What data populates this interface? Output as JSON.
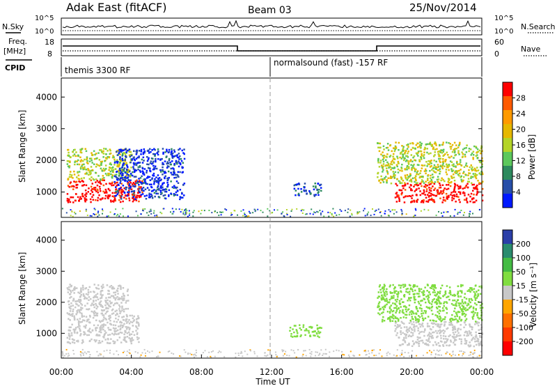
{
  "header": {
    "station": "Adak East (fitACF)",
    "beam": "Beam 03",
    "date": "25/Nov/2014"
  },
  "noise_panel": {
    "left_label": "N.Sky",
    "right_label": "N.Search",
    "left_ticks": [
      "10^5",
      "10^0"
    ],
    "right_ticks": [
      "10^5",
      "10^0"
    ]
  },
  "freq_panel": {
    "left_label_line1": "Freq.",
    "left_label_line2": "[MHz]",
    "left_ticks": [
      "18",
      "8"
    ],
    "right_label": "Nave",
    "right_ticks": [
      "60",
      "0"
    ]
  },
  "cpid_panel": {
    "label": "CPID",
    "segments": [
      {
        "text": "themis 3300 RF",
        "start_hour": 0
      },
      {
        "text": "normalsound (fast) -157 RF",
        "start_hour": 12
      }
    ]
  },
  "chart_data": [
    {
      "type": "heatmap",
      "name": "power",
      "ylabel": "Slant Range [km]",
      "y_ticks": [
        "4000",
        "3000",
        "2000",
        "1000"
      ],
      "ylim": [
        200,
        4600
      ],
      "xlim": [
        0,
        24
      ],
      "colorbar_label": "Power [dB]",
      "colorbar_ticks": [
        "28",
        "24",
        "20",
        "16",
        "12",
        "8",
        "4"
      ],
      "colorbar_colors": [
        "#ff0000",
        "#ff5a00",
        "#ff9a00",
        "#e6b800",
        "#b4d428",
        "#5cc85c",
        "#2d8a5e",
        "#284fa8",
        "#0019ff"
      ],
      "echo_regions": [
        {
          "t0": 0.3,
          "t1": 4.6,
          "r0": 700,
          "r1": 1400,
          "value": 28
        },
        {
          "t0": 0.3,
          "t1": 4.0,
          "r0": 1400,
          "r1": 2400,
          "value": 16
        },
        {
          "t0": 3.0,
          "t1": 7.0,
          "r0": 800,
          "r1": 2400,
          "value": 6
        },
        {
          "t0": 13.2,
          "t1": 14.8,
          "r0": 900,
          "r1": 1300,
          "value": 8
        },
        {
          "t0": 19.0,
          "t1": 24.0,
          "r0": 700,
          "r1": 1300,
          "value": 28
        },
        {
          "t0": 18.0,
          "t1": 24.0,
          "r0": 1300,
          "r1": 2600,
          "value": 16
        }
      ]
    },
    {
      "type": "heatmap",
      "name": "velocity",
      "ylabel": "Slant Range [km]",
      "y_ticks": [
        "4000",
        "3000",
        "2000",
        "1000"
      ],
      "ylim": [
        200,
        4600
      ],
      "xlim": [
        0,
        24
      ],
      "colorbar_label": "Velocity [m s⁻¹]",
      "colorbar_ticks": [
        "200",
        "100",
        "50",
        "15",
        "-15",
        "-50",
        "-100",
        "-200"
      ],
      "colorbar_colors": [
        "#2b3fa8",
        "#2a8c6e",
        "#44bb44",
        "#80dd40",
        "#c8c8c8",
        "#ffa500",
        "#ff7000",
        "#ff3a00",
        "#ff0000"
      ],
      "echo_regions": [
        {
          "t0": 0.3,
          "t1": 4.4,
          "r0": 700,
          "r1": 1600,
          "value": 0
        },
        {
          "t0": 0.3,
          "t1": 3.8,
          "r0": 1600,
          "r1": 2600,
          "value": 0
        },
        {
          "t0": 13.0,
          "t1": 14.8,
          "r0": 900,
          "r1": 1300,
          "value": 60
        },
        {
          "t0": 19.0,
          "t1": 24.0,
          "r0": 600,
          "r1": 1400,
          "value": 0
        },
        {
          "t0": 18.0,
          "t1": 24.0,
          "r0": 1400,
          "r1": 2600,
          "value": 50
        }
      ],
      "xlabel": "Time UT",
      "x_ticks": [
        "00:00",
        "04:00",
        "08:00",
        "12:00",
        "16:00",
        "20:00",
        "00:00"
      ]
    }
  ]
}
